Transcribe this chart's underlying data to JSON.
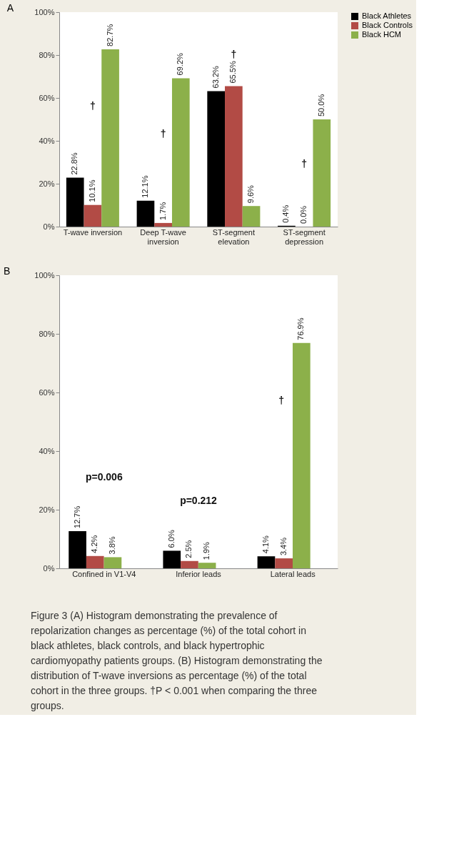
{
  "chart_data": [
    {
      "type": "bar",
      "title": "A",
      "categories": [
        "T-wave inversion",
        "Deep T-wave\ninversion",
        "ST-segment\nelevation",
        "ST-segment\ndepression"
      ],
      "series": [
        {
          "name": "Black Athletes",
          "color": "#000000",
          "values": [
            22.8,
            12.1,
            63.2,
            0.4
          ],
          "value_labels": [
            "22.8%",
            "12.1%",
            "63.2%",
            "0.4%"
          ]
        },
        {
          "name": "Black Controls",
          "color": "#b24b45",
          "values": [
            10.1,
            1.7,
            65.5,
            0.0
          ],
          "value_labels": [
            "10.1%",
            "1.7%",
            "65.5%",
            "0.0%"
          ]
        },
        {
          "name": "Black HCM",
          "color": "#8cb04a",
          "values": [
            82.7,
            69.2,
            9.6,
            50.0
          ],
          "value_labels": [
            "82.7%",
            "69.2%",
            "9.6%",
            "50.0%"
          ]
        }
      ],
      "ylim": [
        0,
        100
      ],
      "yticks": [
        {
          "value": 0,
          "label": "0%"
        },
        {
          "value": 20,
          "label": "20%"
        },
        {
          "value": 40,
          "label": "40%"
        },
        {
          "value": 60,
          "label": "60%"
        },
        {
          "value": 80,
          "label": "80%"
        },
        {
          "value": 100,
          "label": "100%"
        }
      ],
      "annotations": [
        "†",
        "†",
        "†",
        "†"
      ],
      "legend": "right",
      "grid": false
    },
    {
      "type": "bar",
      "title": "B",
      "categories": [
        "Confined in V1-V4",
        "Inferior leads",
        "Lateral leads"
      ],
      "series": [
        {
          "name": "Black Athletes",
          "color": "#000000",
          "values": [
            12.7,
            6.0,
            4.1
          ],
          "value_labels": [
            "12.7%",
            "6.0%",
            "4.1%"
          ]
        },
        {
          "name": "Black Controls",
          "color": "#b24b45",
          "values": [
            4.2,
            2.5,
            3.4
          ],
          "value_labels": [
            "4.2%",
            "2.5%",
            "3.4%"
          ]
        },
        {
          "name": "Black HCM",
          "color": "#8cb04a",
          "values": [
            3.8,
            1.9,
            76.9
          ],
          "value_labels": [
            "3.8%",
            "1.9%",
            "76.9%"
          ]
        }
      ],
      "ylim": [
        0,
        100
      ],
      "yticks": [
        {
          "value": 0,
          "label": "0%"
        },
        {
          "value": 20,
          "label": "20%"
        },
        {
          "value": 40,
          "label": "40%"
        },
        {
          "value": 60,
          "label": "60%"
        },
        {
          "value": 80,
          "label": "80%"
        },
        {
          "value": 100,
          "label": "100%"
        }
      ],
      "annotations": [
        "p=0.006",
        "p=0.212",
        "†",
        "Figure 3 (A) Histogram demonstrating the prevalence of repolarization changes as percentage (%) of the total cohort in black athletes, black controls, and black hypertrophic cardiomyopathy patients groups. (B) Histogram demonstrating the distribution of T-wave inversions as percentage (%) of the total cohort in the three groups. †P < 0.001 when comparing the three groups."
      ],
      "legend": "right",
      "grid": false
    }
  ]
}
